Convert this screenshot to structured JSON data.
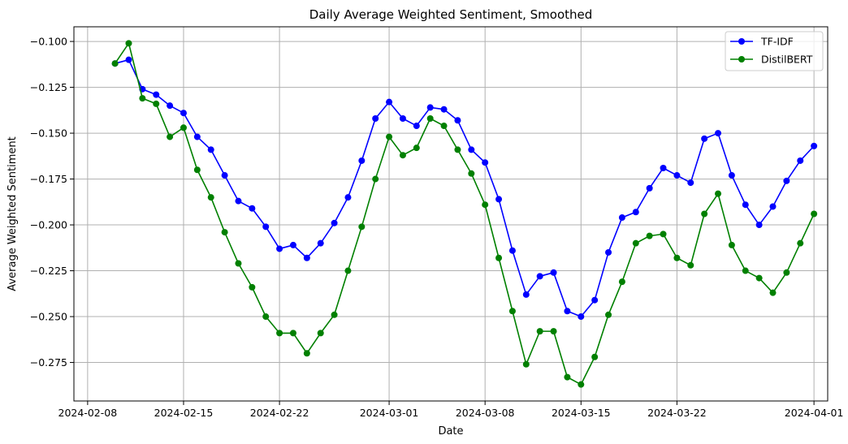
{
  "chart_data": {
    "type": "line",
    "title": "Daily Average Weighted Sentiment, Smoothed",
    "xlabel": "Date",
    "ylabel": "Average Weighted Sentiment",
    "x_start": "2024-02-10",
    "x_end": "2024-03-31",
    "xlim": [
      "2024-02-07",
      "2024-04-02"
    ],
    "ylim": [
      -0.296,
      -0.092
    ],
    "x_ticks": [
      "2024-02-08",
      "2024-02-15",
      "2024-02-22",
      "2024-03-01",
      "2024-03-08",
      "2024-03-15",
      "2024-03-22",
      "2024-04-01"
    ],
    "y_ticks": [
      -0.1,
      -0.125,
      -0.15,
      -0.175,
      -0.2,
      -0.225,
      -0.25,
      -0.275
    ],
    "y_tick_labels": [
      "−0.100",
      "−0.125",
      "−0.150",
      "−0.175",
      "−0.200",
      "−0.225",
      "−0.250",
      "−0.275"
    ],
    "grid": true,
    "legend_position": "top-right",
    "series": [
      {
        "name": "TF-IDF",
        "color": "#0000ff",
        "values": [
          -0.112,
          -0.11,
          -0.126,
          -0.129,
          -0.135,
          -0.139,
          -0.152,
          -0.159,
          -0.173,
          -0.187,
          -0.191,
          -0.201,
          -0.213,
          -0.211,
          -0.218,
          -0.21,
          -0.199,
          -0.185,
          -0.165,
          -0.142,
          -0.133,
          -0.142,
          -0.146,
          -0.136,
          -0.137,
          -0.143,
          -0.159,
          -0.166,
          -0.186,
          -0.214,
          -0.238,
          -0.228,
          -0.226,
          -0.247,
          -0.25,
          -0.241,
          -0.215,
          -0.196,
          -0.193,
          -0.18,
          -0.169,
          -0.173,
          -0.177,
          -0.153,
          -0.15,
          -0.173,
          -0.189,
          -0.2,
          -0.19,
          -0.176,
          -0.165,
          -0.157
        ]
      },
      {
        "name": "DistilBERT",
        "color": "#008000",
        "values": [
          -0.112,
          -0.101,
          -0.131,
          -0.134,
          -0.152,
          -0.147,
          -0.17,
          -0.185,
          -0.204,
          -0.221,
          -0.234,
          -0.25,
          -0.259,
          -0.259,
          -0.27,
          -0.259,
          -0.249,
          -0.225,
          -0.201,
          -0.175,
          -0.152,
          -0.162,
          -0.158,
          -0.142,
          -0.146,
          -0.159,
          -0.172,
          -0.189,
          -0.218,
          -0.247,
          -0.276,
          -0.258,
          -0.258,
          -0.283,
          -0.287,
          -0.272,
          -0.249,
          -0.231,
          -0.21,
          -0.206,
          -0.205,
          -0.218,
          -0.222,
          -0.194,
          -0.183,
          -0.211,
          -0.225,
          -0.229,
          -0.237,
          -0.226,
          -0.21,
          -0.194
        ]
      }
    ]
  }
}
